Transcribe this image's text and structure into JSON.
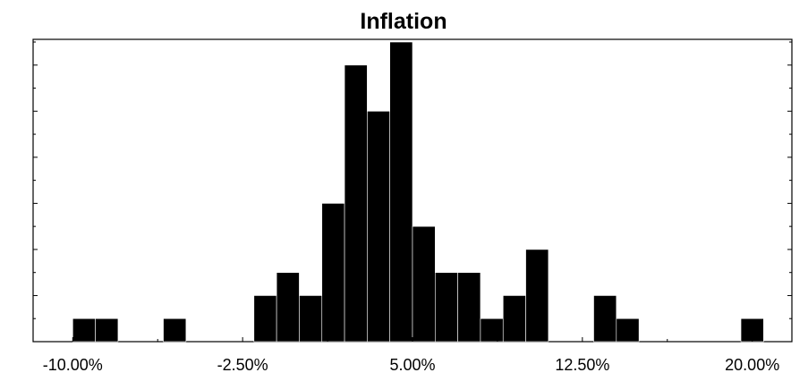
{
  "chart_data": {
    "type": "bar",
    "title": "Inflation",
    "xlabel": "",
    "ylabel": "",
    "xlim": [
      -11.75,
      21.75
    ],
    "ylim": [
      0,
      13
    ],
    "bin_width": 1,
    "bins": [
      {
        "start": -10.0,
        "count": 1
      },
      {
        "start": -9.0,
        "count": 1
      },
      {
        "start": -6.0,
        "count": 1
      },
      {
        "start": -2.0,
        "count": 2
      },
      {
        "start": -1.0,
        "count": 3
      },
      {
        "start": 0.0,
        "count": 2
      },
      {
        "start": 1.0,
        "count": 6
      },
      {
        "start": 2.0,
        "count": 12
      },
      {
        "start": 3.0,
        "count": 10
      },
      {
        "start": 4.0,
        "count": 13
      },
      {
        "start": 5.0,
        "count": 5
      },
      {
        "start": 6.0,
        "count": 3
      },
      {
        "start": 7.0,
        "count": 3
      },
      {
        "start": 8.0,
        "count": 1
      },
      {
        "start": 9.0,
        "count": 2
      },
      {
        "start": 10.0,
        "count": 4
      },
      {
        "start": 13.0,
        "count": 2
      },
      {
        "start": 14.0,
        "count": 1
      },
      {
        "start": 19.5,
        "count": 1
      }
    ],
    "x_tick_labels": [
      {
        "value": -10.0,
        "label": "-10.00%"
      },
      {
        "value": -2.5,
        "label": "-2.50%"
      },
      {
        "value": 5.0,
        "label": "5.00%"
      },
      {
        "value": 12.5,
        "label": "12.50%"
      },
      {
        "value": 20.0,
        "label": "20.00%"
      }
    ],
    "minor_x_ticks": [
      -6.25,
      1.25,
      8.75,
      16.25
    ],
    "y_ticks": [
      2,
      4,
      6,
      8,
      10,
      12
    ],
    "grid": false,
    "bar_color": "#000000"
  }
}
